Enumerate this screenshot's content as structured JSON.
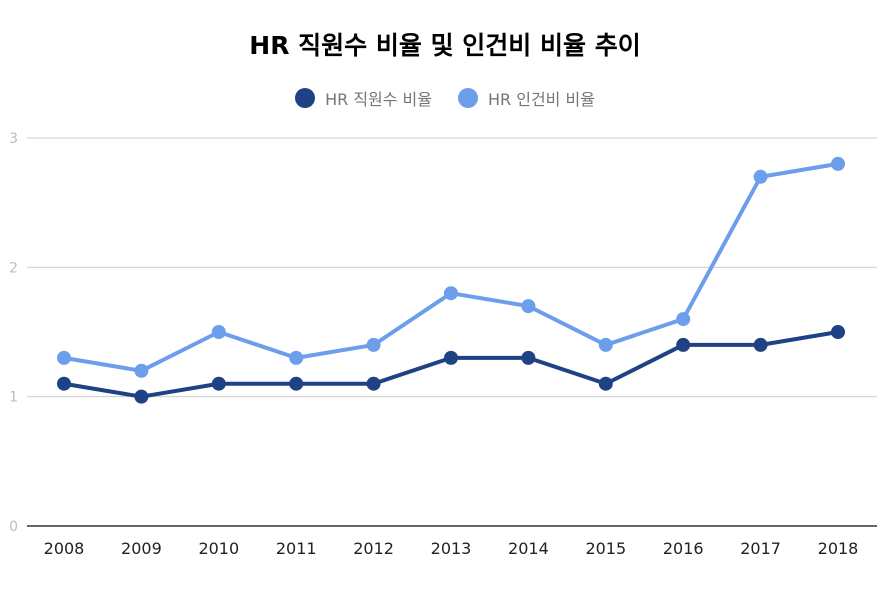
{
  "chart_data": {
    "type": "line",
    "title": "HR 직원수 비율 및 인건비 비율 추이",
    "xlabel": "",
    "ylabel": "",
    "categories": [
      "2008",
      "2009",
      "2010",
      "2011",
      "2012",
      "2013",
      "2014",
      "2015",
      "2016",
      "2017",
      "2018"
    ],
    "ylim": [
      0,
      3
    ],
    "yticks": [
      "0",
      "1",
      "2",
      "3"
    ],
    "grid": true,
    "legend_position": "top",
    "series": [
      {
        "name": "HR 직원수 비율",
        "color": "#1f4285",
        "values": [
          1.1,
          1.0,
          1.1,
          1.1,
          1.1,
          1.3,
          1.3,
          1.1,
          1.4,
          1.4,
          1.5
        ]
      },
      {
        "name": "HR 인건비 비율",
        "color": "#6d9eeb",
        "values": [
          1.3,
          1.2,
          1.5,
          1.3,
          1.4,
          1.8,
          1.7,
          1.4,
          1.6,
          2.7,
          2.8
        ]
      }
    ]
  }
}
